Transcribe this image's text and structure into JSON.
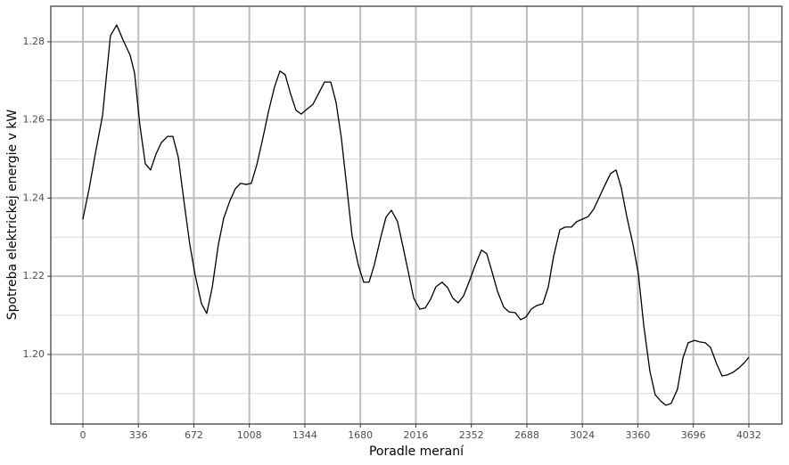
{
  "chart_data": {
    "type": "line",
    "x_label": "Poradle meraní",
    "y_label": "Spotreba elektrickej energie v kW",
    "x": [
      0,
      38,
      76,
      119,
      167,
      205,
      243,
      286,
      313,
      345,
      378,
      410,
      443,
      475,
      513,
      545,
      578,
      615,
      648,
      680,
      718,
      750,
      783,
      820,
      853,
      891,
      923,
      955,
      988,
      1020,
      1053,
      1090,
      1123,
      1160,
      1193,
      1225,
      1258,
      1290,
      1322,
      1355,
      1393,
      1425,
      1463,
      1501,
      1533,
      1565,
      1598,
      1630,
      1668,
      1700,
      1733,
      1765,
      1803,
      1835,
      1868,
      1905,
      1938,
      1970,
      2003,
      2040,
      2073,
      2105,
      2137,
      2175,
      2208,
      2240,
      2272,
      2305,
      2343,
      2375,
      2413,
      2445,
      2477,
      2510,
      2548,
      2580,
      2618,
      2650,
      2683,
      2715,
      2747,
      2785,
      2818,
      2850,
      2888,
      2920,
      2958,
      2990,
      3023,
      3060,
      3093,
      3125,
      3158,
      3195,
      3228,
      3260,
      3293,
      3330,
      3363,
      3395,
      3433,
      3465,
      3498,
      3530,
      3562,
      3600,
      3633,
      3665,
      3703,
      3735,
      3768,
      3800,
      3838,
      3870,
      3903,
      3935,
      3973,
      4005,
      4032
    ],
    "values": [
      1.2346,
      1.2424,
      1.2515,
      1.2611,
      1.2816,
      1.2843,
      1.2805,
      1.2766,
      1.272,
      1.2588,
      1.2488,
      1.2472,
      1.2513,
      1.2542,
      1.2558,
      1.2558,
      1.2504,
      1.2383,
      1.228,
      1.2203,
      1.213,
      1.2105,
      1.2171,
      1.228,
      1.2349,
      1.2394,
      1.2424,
      1.2438,
      1.2435,
      1.2438,
      1.2485,
      1.2554,
      1.262,
      1.2684,
      1.2725,
      1.2716,
      1.2666,
      1.2625,
      1.2615,
      1.2627,
      1.264,
      1.2666,
      1.2697,
      1.2697,
      1.2645,
      1.2554,
      1.2428,
      1.2303,
      1.2228,
      1.2185,
      1.2185,
      1.223,
      1.2299,
      1.2351,
      1.2369,
      1.234,
      1.2276,
      1.2212,
      1.2144,
      1.2116,
      1.2119,
      1.2141,
      1.2173,
      1.2185,
      1.2171,
      1.2144,
      1.2132,
      1.215,
      1.2191,
      1.2228,
      1.2267,
      1.2258,
      1.2212,
      1.2162,
      1.2121,
      1.2109,
      1.2107,
      1.2089,
      1.2096,
      1.2116,
      1.2125,
      1.213,
      1.2173,
      1.2251,
      1.2319,
      1.2326,
      1.2326,
      1.234,
      1.2346,
      1.2353,
      1.2372,
      1.2401,
      1.2431,
      1.2463,
      1.2472,
      1.2426,
      1.2353,
      1.2283,
      1.2207,
      1.2077,
      1.1957,
      1.1897,
      1.1881,
      1.187,
      1.1875,
      1.1911,
      1.1991,
      1.203,
      1.2036,
      1.2032,
      1.203,
      1.2018,
      1.1975,
      1.1945,
      1.1948,
      1.1954,
      1.1966,
      1.1979,
      1.1993
    ],
    "color": "#000000",
    "xlim": [
      -194,
      4232
    ],
    "ylim": [
      1.1822,
      1.2891
    ],
    "xticks": [
      0,
      336,
      672,
      1008,
      1344,
      1680,
      2016,
      2352,
      2688,
      3024,
      3360,
      3696,
      4032
    ],
    "yticks": [
      {
        "value": 1.2,
        "label": "1.20"
      },
      1.22,
      1.24,
      1.26,
      1.28
    ],
    "yminorticks": [
      1.19,
      1.21,
      1.23,
      1.25,
      1.27
    ],
    "grid": true
  }
}
